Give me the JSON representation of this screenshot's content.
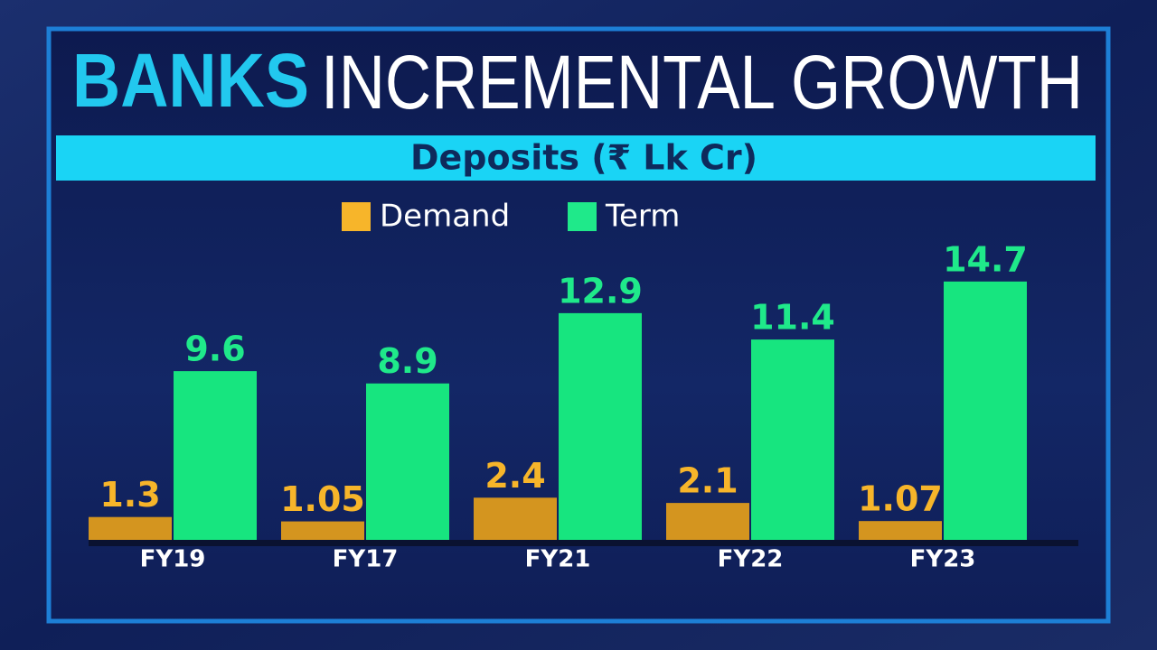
{
  "chart_data": {
    "type": "bar",
    "title_parts": [
      "BANKS",
      "INCREMENTAL GROWTH"
    ],
    "subtitle": "Deposits (₹ Lk Cr)",
    "categories": [
      "FY19",
      "FY17",
      "FY21",
      "FY22",
      "FY23"
    ],
    "series": [
      {
        "name": "Demand",
        "color": "#d4951f",
        "label_color": "#f7b52a",
        "values": [
          1.3,
          1.05,
          2.4,
          2.1,
          1.07
        ]
      },
      {
        "name": "Term",
        "color": "#17e57f",
        "label_color": "#1fe98a",
        "values": [
          9.6,
          8.9,
          12.9,
          11.4,
          14.7
        ]
      }
    ],
    "ylim": [
      0,
      15
    ],
    "grid": false
  }
}
